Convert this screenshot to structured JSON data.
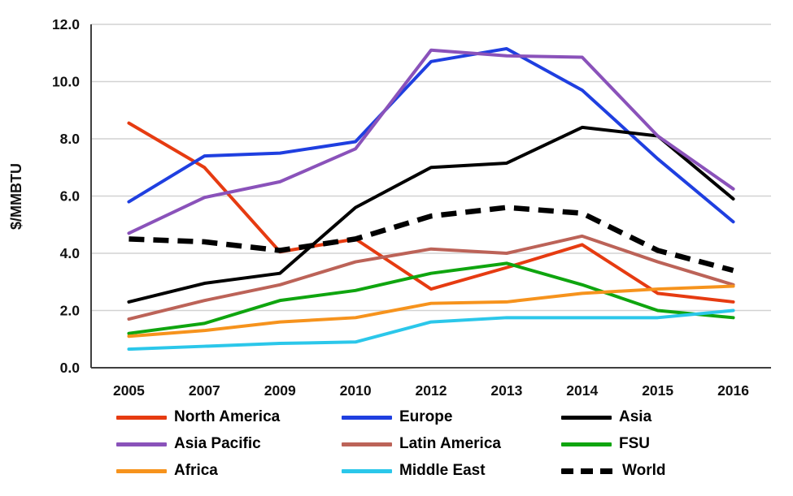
{
  "chart_data": {
    "type": "line",
    "title": "",
    "xlabel": "",
    "ylabel": "$/MMBTU",
    "ylim": [
      0,
      12
    ],
    "ytick_step": 2,
    "ytick_labels": [
      "0.0",
      "2.0",
      "4.0",
      "6.0",
      "8.0",
      "10.0",
      "12.0"
    ],
    "categories": [
      "2005",
      "2007",
      "2009",
      "2010",
      "2012",
      "2013",
      "2014",
      "2015",
      "2016"
    ],
    "grid": true,
    "legend_position": "bottom",
    "colors": {
      "grid": "#d2d2d2",
      "axis": "#3f3f3f",
      "text": "#111111"
    },
    "series": [
      {
        "name": "North America",
        "color": "#e63b11",
        "dash": false,
        "values": [
          8.55,
          7.0,
          4.05,
          4.5,
          2.75,
          3.5,
          4.3,
          2.6,
          2.3
        ]
      },
      {
        "name": "Europe",
        "color": "#1f3fe0",
        "dash": false,
        "values": [
          5.8,
          7.4,
          7.5,
          7.9,
          10.7,
          11.15,
          9.7,
          7.3,
          5.1
        ]
      },
      {
        "name": "Asia",
        "color": "#000000",
        "dash": false,
        "values": [
          2.3,
          2.95,
          3.3,
          5.6,
          7.0,
          7.15,
          8.4,
          8.1,
          5.9
        ]
      },
      {
        "name": "Asia Pacific",
        "color": "#8a52ba",
        "dash": false,
        "values": [
          4.7,
          5.95,
          6.5,
          7.65,
          11.1,
          10.9,
          10.85,
          8.1,
          6.25
        ]
      },
      {
        "name": "Latin America",
        "color": "#bc6358",
        "dash": false,
        "values": [
          1.7,
          2.35,
          2.9,
          3.7,
          4.15,
          4.0,
          4.6,
          3.7,
          2.9
        ]
      },
      {
        "name": "FSU",
        "color": "#0fa50f",
        "dash": false,
        "values": [
          1.2,
          1.55,
          2.35,
          2.7,
          3.3,
          3.65,
          2.9,
          2.0,
          1.75
        ]
      },
      {
        "name": "Africa",
        "color": "#f6931d",
        "dash": false,
        "values": [
          1.1,
          1.3,
          1.6,
          1.75,
          2.25,
          2.3,
          2.6,
          2.75,
          2.85
        ]
      },
      {
        "name": "Middle East",
        "color": "#2bc7ea",
        "dash": false,
        "values": [
          0.65,
          0.75,
          0.85,
          0.9,
          1.6,
          1.75,
          1.75,
          1.75,
          2.0
        ]
      },
      {
        "name": "World",
        "color": "#000000",
        "dash": true,
        "values": [
          4.5,
          4.4,
          4.1,
          4.5,
          5.3,
          5.6,
          5.4,
          4.1,
          3.4
        ]
      }
    ]
  }
}
